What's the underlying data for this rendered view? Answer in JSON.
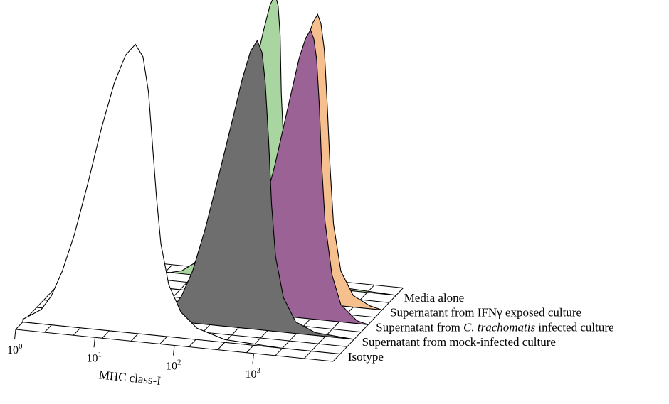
{
  "chart_data": {
    "type": "area",
    "subtype": "3d-offset-histogram-overlay",
    "xlabel": "MHC class-I",
    "x_scale": "log",
    "x_ticks": [
      {
        "base": "10",
        "exp": "0"
      },
      {
        "base": "10",
        "exp": "1"
      },
      {
        "base": "10",
        "exp": "2"
      },
      {
        "base": "10",
        "exp": "3"
      }
    ],
    "grid": true,
    "series": [
      {
        "name": "Isotype",
        "color": "#ffffff",
        "stroke": "#000000",
        "points": [
          [
            1.0,
            0.01
          ],
          [
            1.3,
            0.05
          ],
          [
            1.45,
            0.1
          ],
          [
            1.6,
            0.19
          ],
          [
            1.75,
            0.32
          ],
          [
            1.9,
            0.5
          ],
          [
            2.05,
            0.7
          ],
          [
            2.2,
            0.86
          ],
          [
            2.35,
            0.96
          ],
          [
            2.5,
            1.0
          ],
          [
            2.65,
            0.96
          ],
          [
            2.8,
            0.84
          ],
          [
            2.95,
            0.66
          ],
          [
            3.1,
            0.48
          ],
          [
            3.25,
            0.32
          ],
          [
            3.45,
            0.18
          ],
          [
            3.7,
            0.09
          ],
          [
            4.0,
            0.04
          ],
          [
            4.5,
            0.01
          ],
          [
            5.5,
            0.0
          ]
        ]
      },
      {
        "name": "Supernatant from mock-infected culture",
        "color": "#6e6e6e",
        "stroke": "#000000",
        "points": [
          [
            1.0,
            0.0
          ],
          [
            1.3,
            0.01
          ],
          [
            1.5,
            0.04
          ],
          [
            1.65,
            0.09
          ],
          [
            1.8,
            0.18
          ],
          [
            1.95,
            0.33
          ],
          [
            2.1,
            0.52
          ],
          [
            2.25,
            0.72
          ],
          [
            2.35,
            0.86
          ],
          [
            2.45,
            0.96
          ],
          [
            2.55,
            1.0
          ],
          [
            2.65,
            0.96
          ],
          [
            2.75,
            0.86
          ],
          [
            2.9,
            0.66
          ],
          [
            3.05,
            0.44
          ],
          [
            3.2,
            0.26
          ],
          [
            3.4,
            0.12
          ],
          [
            3.65,
            0.04
          ],
          [
            4.0,
            0.01
          ],
          [
            5.5,
            0.0
          ]
        ]
      },
      {
        "name": "Supernatant from C. trachomatis infected culture",
        "color": "#9b6296",
        "stroke": "#000000",
        "points": [
          [
            1.0,
            0.0
          ],
          [
            1.4,
            0.01
          ],
          [
            1.6,
            0.04
          ],
          [
            1.8,
            0.1
          ],
          [
            1.95,
            0.2
          ],
          [
            2.1,
            0.34
          ],
          [
            2.25,
            0.52
          ],
          [
            2.38,
            0.72
          ],
          [
            2.5,
            0.9
          ],
          [
            2.58,
            0.97
          ],
          [
            2.65,
            1.0
          ],
          [
            2.72,
            0.97
          ],
          [
            2.8,
            0.9
          ],
          [
            2.92,
            0.74
          ],
          [
            3.05,
            0.54
          ],
          [
            3.2,
            0.34
          ],
          [
            3.4,
            0.16
          ],
          [
            3.6,
            0.06
          ],
          [
            3.9,
            0.01
          ],
          [
            5.5,
            0.0
          ]
        ]
      },
      {
        "name": "Supernatant from IFNγ exposed culture",
        "color": "#f5c08e",
        "stroke": "#000000",
        "points": [
          [
            1.0,
            0.0
          ],
          [
            1.4,
            0.01
          ],
          [
            1.6,
            0.04
          ],
          [
            1.8,
            0.1
          ],
          [
            1.95,
            0.2
          ],
          [
            2.1,
            0.36
          ],
          [
            2.25,
            0.56
          ],
          [
            2.38,
            0.76
          ],
          [
            2.5,
            0.9
          ],
          [
            2.58,
            0.97
          ],
          [
            2.65,
            1.0
          ],
          [
            2.72,
            0.97
          ],
          [
            2.82,
            0.88
          ],
          [
            2.95,
            0.7
          ],
          [
            3.1,
            0.48
          ],
          [
            3.25,
            0.28
          ],
          [
            3.45,
            0.12
          ],
          [
            3.7,
            0.04
          ],
          [
            4.0,
            0.01
          ],
          [
            5.5,
            0.0
          ]
        ]
      },
      {
        "name": "Media alone",
        "color": "#a9d5a0",
        "stroke": "#000000",
        "points": [
          [
            1.0,
            0.0
          ],
          [
            1.2,
            0.01
          ],
          [
            1.4,
            0.04
          ],
          [
            1.55,
            0.09
          ],
          [
            1.7,
            0.18
          ],
          [
            1.85,
            0.32
          ],
          [
            2.0,
            0.5
          ],
          [
            2.12,
            0.7
          ],
          [
            2.22,
            0.86
          ],
          [
            2.3,
            0.96
          ],
          [
            2.37,
            1.0
          ],
          [
            2.44,
            0.96
          ],
          [
            2.52,
            0.86
          ],
          [
            2.63,
            0.66
          ],
          [
            2.78,
            0.44
          ],
          [
            2.95,
            0.24
          ],
          [
            3.15,
            0.1
          ],
          [
            3.4,
            0.03
          ],
          [
            3.7,
            0.01
          ],
          [
            5.5,
            0.0
          ]
        ]
      }
    ],
    "legend_position": "right-of-each-trace"
  }
}
